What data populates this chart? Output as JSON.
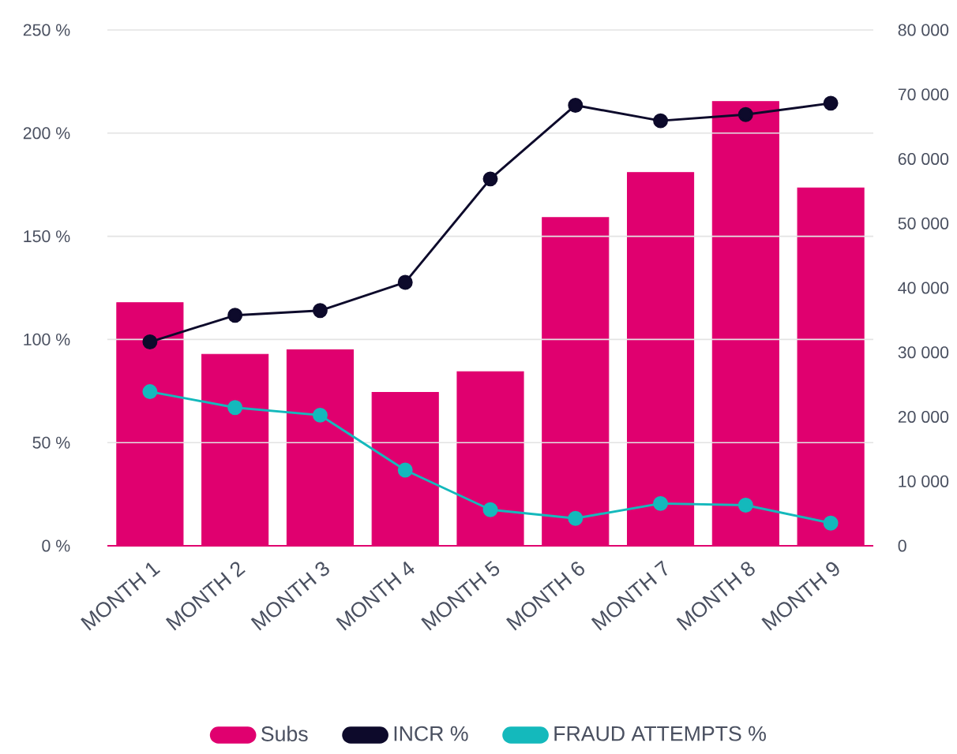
{
  "chart_data": {
    "type": "bar",
    "categories": [
      "MONTH 1",
      "MONTH 2",
      "MONTH 3",
      "MONTH 4",
      "MONTH 5",
      "MONTH 6",
      "MONTH 7",
      "MONTH 8",
      "MONTH 9"
    ],
    "series": [
      {
        "name": "Subs",
        "axis": "y2",
        "color": "#e0006f",
        "values": [
          37700,
          29700,
          30400,
          23800,
          27000,
          50900,
          57900,
          68900,
          55500
        ]
      },
      {
        "name": "INCR %",
        "type": "line",
        "color": "#0d0a2b",
        "values": [
          98.8,
          111.7,
          114,
          127.7,
          177.8,
          213.5,
          206,
          209,
          214.5
        ]
      },
      {
        "name": "FRAUD ATTEMPTS %",
        "type": "line",
        "color": "#14b9bc",
        "values": [
          74.7,
          67,
          63.3,
          36.7,
          17.5,
          13.3,
          20.5,
          19.7,
          11
        ]
      }
    ],
    "ylim": [
      0,
      250
    ],
    "yticks": [
      {
        "value": 0,
        "label": "0 %"
      },
      {
        "value": 50,
        "label": "50 %"
      },
      {
        "value": 100,
        "label": "100 %"
      },
      {
        "value": 150,
        "label": "150 %"
      },
      {
        "value": 200,
        "label": "200 %"
      },
      {
        "value": 250,
        "label": "250 %"
      }
    ],
    "y2lim": [
      0,
      80000
    ],
    "y2ticks": [
      0,
      {
        "value": 10000,
        "label": "10 000"
      },
      {
        "value": 20000,
        "label": "20 000"
      },
      {
        "value": 30000,
        "label": "30 000"
      },
      {
        "value": 40000,
        "label": "40 000"
      },
      {
        "value": 50000,
        "label": "50 000"
      },
      {
        "value": 60000,
        "label": "60 000"
      },
      {
        "value": 70000,
        "label": "70 000"
      },
      {
        "value": 80000,
        "label": "80 000"
      }
    ],
    "grid": "y",
    "legend": "bottom",
    "marker": "circle"
  }
}
